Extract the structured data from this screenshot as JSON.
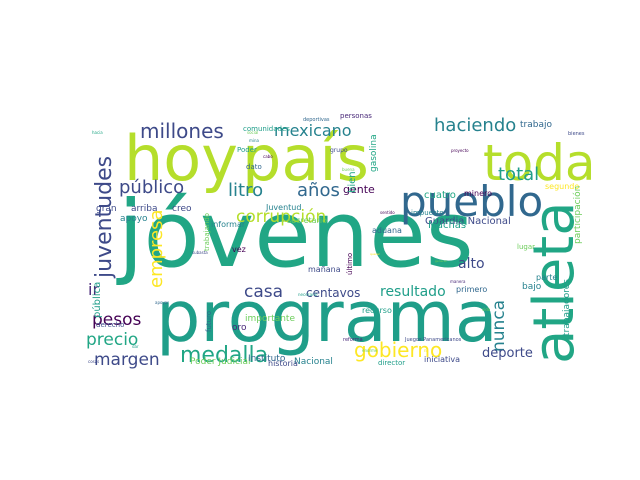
{
  "palette": {
    "background": "#ffffff",
    "green_bright": "#b5de2b",
    "green": "#6ccd5a",
    "teal": "#21a685",
    "teal_blue": "#1f9e89",
    "cyan_blue": "#26828e",
    "blue": "#31688e",
    "indigo": "#3e4a89",
    "purple": "#482878",
    "dark": "#440154",
    "yellow": "#fde725"
  },
  "words": [
    "jóvenes",
    "programa",
    "hoy",
    "país",
    "toda",
    "pueblo",
    "atleta",
    "juventudes",
    "millones",
    "mexicano",
    "haciendo",
    "trabajo",
    "bienes",
    "público",
    "litro",
    "años",
    "total",
    "corrupción",
    "gobierno",
    "empresa",
    "casa",
    "medalla",
    "pesos",
    "precio",
    "margen",
    "centavos",
    "resultado",
    "nunca",
    "deporte",
    "alto",
    "Guardia Nacional",
    "Poder Judicial",
    "Instituto",
    "Nacional",
    "gente",
    "Juventud",
    "secretario",
    "aduana",
    "impuesto",
    "Muchas",
    "cuatro",
    "minero",
    "segundo",
    "participación",
    "bien",
    "comunidades",
    "deportivas",
    "personas",
    "grupo",
    "gasolina",
    "proyecto",
    "hacia",
    "social",
    "mina",
    "cabo",
    "dato",
    "Poder",
    "arriba",
    "creo",
    "apoyo",
    "gran",
    "ir",
    "pública",
    "trabajando",
    "subasta",
    "informar",
    "vez",
    "historia",
    "último",
    "mañana",
    "querer",
    "general",
    "manera",
    "parte",
    "lugar",
    "bajo",
    "primero",
    "trabajadores",
    "recurso",
    "importante",
    "futuro",
    "oro",
    "derecho",
    "reforma",
    "director",
    "iniciativa",
    "Juegos Panamericanos",
    "sido",
    "cosas",
    "dar",
    "apoyar",
    "ni",
    "enorme",
    "necesario",
    "buena",
    "sentido",
    "tal"
  ]
}
